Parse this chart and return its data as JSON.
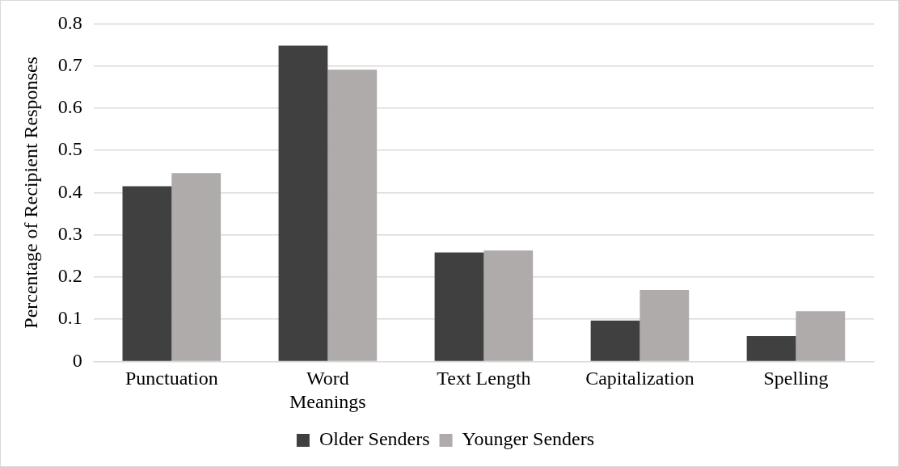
{
  "chart_data": {
    "type": "bar",
    "ylabel": "Percentage of Recipient Responses",
    "categories": [
      "Punctuation",
      "Word Meanings",
      "Text Length",
      "Capitalization",
      "Spelling"
    ],
    "series": [
      {
        "name": "Older Senders",
        "color": "#404040",
        "values": [
          0.415,
          0.748,
          0.258,
          0.097,
          0.06
        ]
      },
      {
        "name": "Younger Senders",
        "color": "#aeabaa",
        "values": [
          0.446,
          0.691,
          0.263,
          0.169,
          0.119
        ]
      }
    ],
    "ylim": [
      0,
      0.8
    ],
    "yticks": [
      0,
      0.1,
      0.2,
      0.3,
      0.4,
      0.5,
      0.6,
      0.7,
      0.8
    ],
    "grid": "y",
    "legend": "bottom"
  }
}
